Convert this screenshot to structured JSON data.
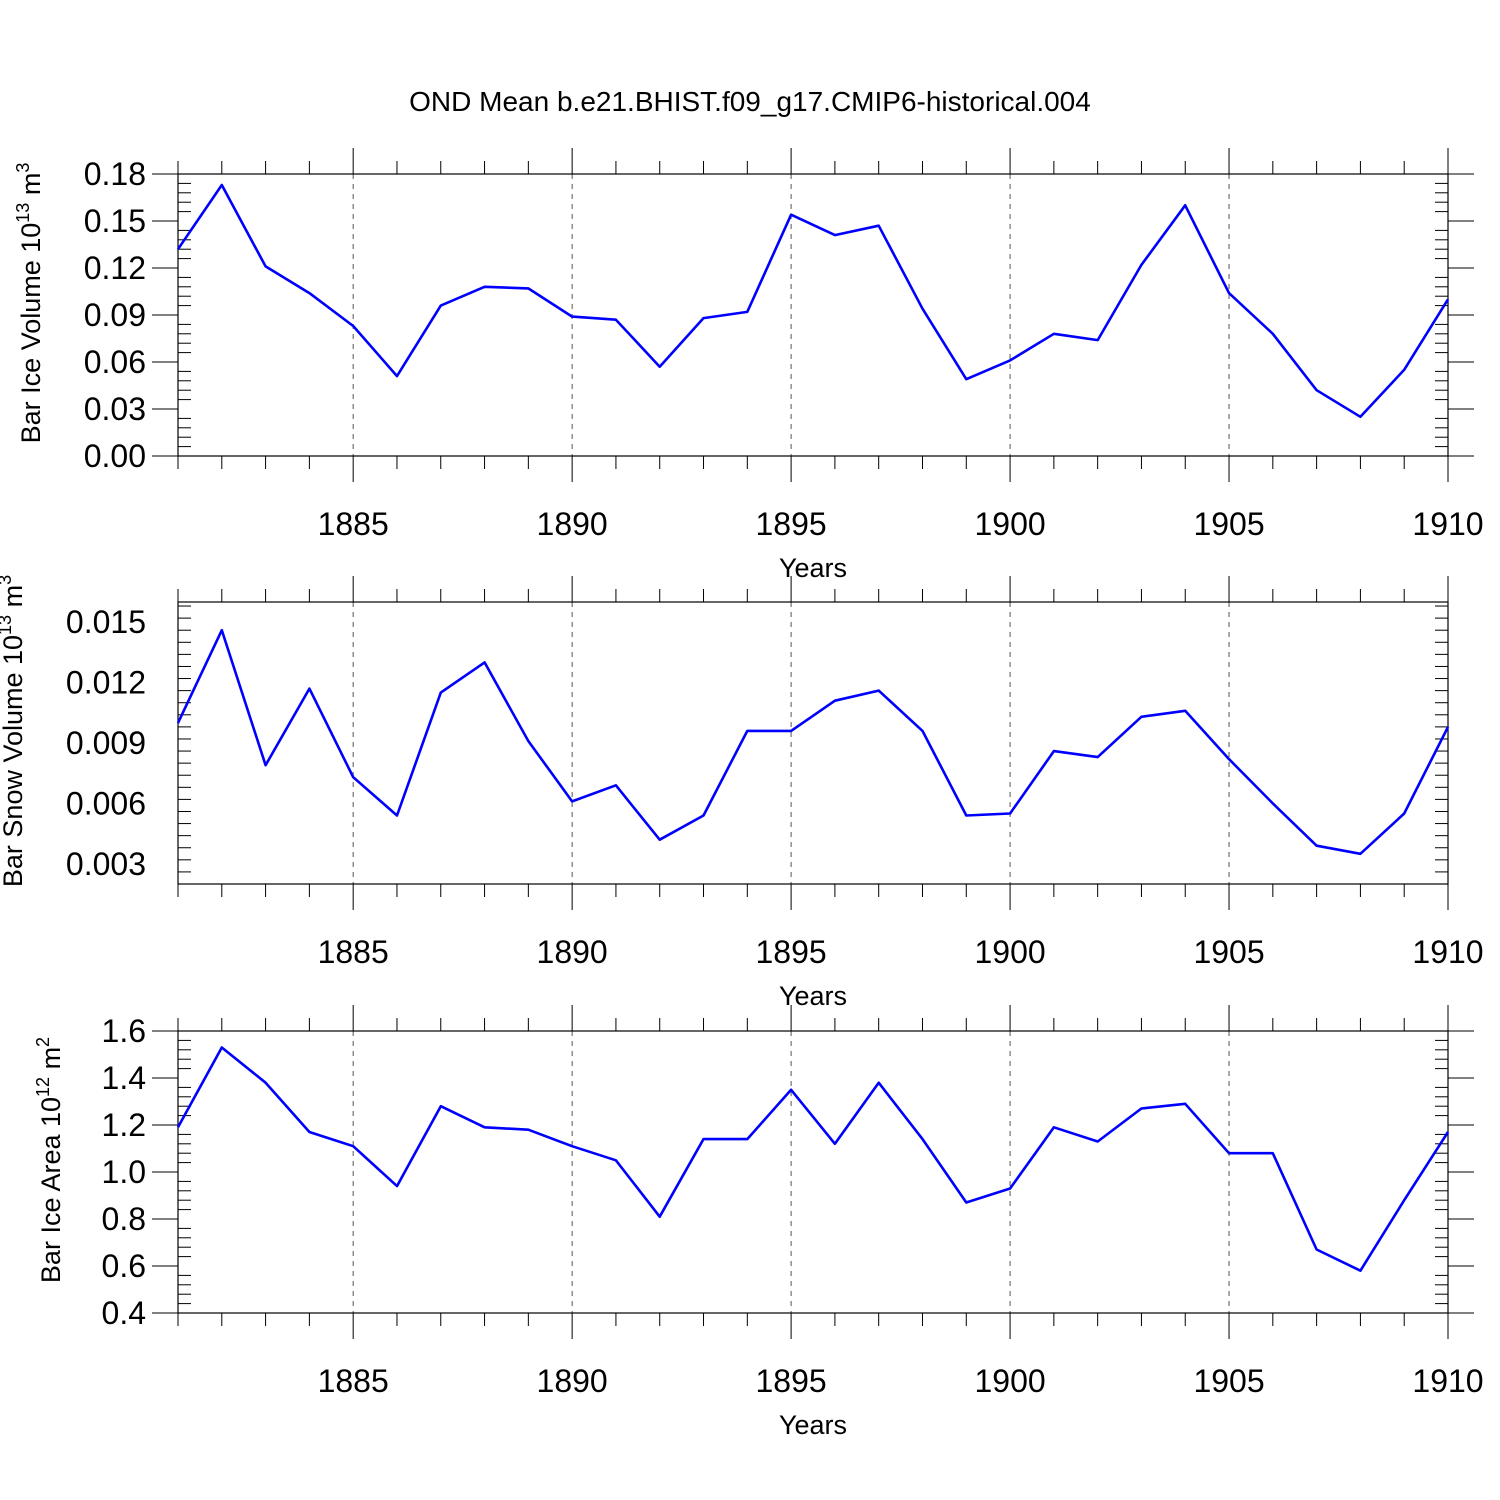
{
  "figure_title": "OND Mean b.e21.BHIST.f09_g17.CMIP6-historical.004",
  "colors": {
    "line": "#0000ff",
    "axes": "#000000",
    "grid": "#555555"
  },
  "chart_data": [
    {
      "type": "line",
      "title": "OND Mean b.e21.BHIST.f09_g17.CMIP6-historical.004",
      "xlabel": "Years",
      "ylabel": {
        "text": "Bar Ice Volume 10",
        "sup": "13",
        "unit": " m",
        "unit_sup": "3"
      },
      "xlim": [
        1881,
        1910
      ],
      "ylim": [
        0.0,
        0.18
      ],
      "xticks": [
        1885,
        1890,
        1895,
        1900,
        1905,
        1910
      ],
      "xtick_labels": [
        "1885",
        "1890",
        "1895",
        "1900",
        "1905",
        "1910"
      ],
      "yticks": [
        0.0,
        0.03,
        0.06,
        0.09,
        0.12,
        0.15,
        0.18
      ],
      "ytick_labels": [
        "0.00",
        "0.03",
        "0.06",
        "0.09",
        "0.12",
        "0.15",
        "0.18"
      ],
      "grid": "vertical dashed at major x ticks",
      "x": [
        1881,
        1882,
        1883,
        1884,
        1885,
        1886,
        1887,
        1888,
        1889,
        1890,
        1891,
        1892,
        1893,
        1894,
        1895,
        1896,
        1897,
        1898,
        1899,
        1900,
        1901,
        1902,
        1903,
        1904,
        1905,
        1906,
        1907,
        1908,
        1909,
        1910
      ],
      "series": [
        {
          "values": [
            0.132,
            0.173,
            0.121,
            0.104,
            0.083,
            0.051,
            0.096,
            0.108,
            0.107,
            0.089,
            0.087,
            0.057,
            0.088,
            0.092,
            0.154,
            0.141,
            0.147,
            0.094,
            0.049,
            0.061,
            0.078,
            0.074,
            0.122,
            0.16,
            0.104,
            0.078,
            0.042,
            0.025,
            0.055,
            0.1
          ]
        }
      ]
    },
    {
      "type": "line",
      "xlabel": "Years",
      "ylabel": {
        "text": "Bar Snow Volume 10",
        "sup": "13",
        "unit": " m",
        "unit_sup": "3"
      },
      "xlim": [
        1881,
        1910
      ],
      "ylim": [
        0.002,
        0.016
      ],
      "xticks": [
        1885,
        1890,
        1895,
        1900,
        1905,
        1910
      ],
      "xtick_labels": [
        "1885",
        "1890",
        "1895",
        "1900",
        "1905",
        "1910"
      ],
      "yticks": [
        0.003,
        0.006,
        0.009,
        0.012,
        0.015
      ],
      "ytick_labels": [
        "0.003",
        "0.006",
        "0.009",
        "0.012",
        "0.015"
      ],
      "grid": "vertical dashed at major x ticks",
      "x": [
        1881,
        1882,
        1883,
        1884,
        1885,
        1886,
        1887,
        1888,
        1889,
        1890,
        1891,
        1892,
        1893,
        1894,
        1895,
        1896,
        1897,
        1898,
        1899,
        1900,
        1901,
        1902,
        1903,
        1904,
        1905,
        1906,
        1907,
        1908,
        1909,
        1910
      ],
      "series": [
        {
          "values": [
            0.01,
            0.0146,
            0.0079,
            0.0117,
            0.0073,
            0.0054,
            0.0115,
            0.013,
            0.0091,
            0.0061,
            0.0069,
            0.0042,
            0.0054,
            0.0096,
            0.0096,
            0.0111,
            0.0116,
            0.0096,
            0.0054,
            0.0055,
            0.0086,
            0.0083,
            0.0103,
            0.0106,
            0.0082,
            0.006,
            0.0039,
            0.0035,
            0.0055,
            0.0098
          ]
        }
      ]
    },
    {
      "type": "line",
      "xlabel": "Years",
      "ylabel": {
        "text": "Bar Ice Area 10",
        "sup": "12",
        "unit": " m",
        "unit_sup": "2"
      },
      "xlim": [
        1881,
        1910
      ],
      "ylim": [
        0.4,
        1.6
      ],
      "xticks": [
        1885,
        1890,
        1895,
        1900,
        1905,
        1910
      ],
      "xtick_labels": [
        "1885",
        "1890",
        "1895",
        "1900",
        "1905",
        "1910"
      ],
      "yticks": [
        0.4,
        0.6,
        0.8,
        1.0,
        1.2,
        1.4,
        1.6
      ],
      "ytick_labels": [
        "0.4",
        "0.6",
        "0.8",
        "1.0",
        "1.2",
        "1.4",
        "1.6"
      ],
      "grid": "vertical dashed at major x ticks",
      "x": [
        1881,
        1882,
        1883,
        1884,
        1885,
        1886,
        1887,
        1888,
        1889,
        1890,
        1891,
        1892,
        1893,
        1894,
        1895,
        1896,
        1897,
        1898,
        1899,
        1900,
        1901,
        1902,
        1903,
        1904,
        1905,
        1906,
        1907,
        1908,
        1909,
        1910
      ],
      "series": [
        {
          "values": [
            1.19,
            1.53,
            1.38,
            1.17,
            1.11,
            0.94,
            1.28,
            1.19,
            1.18,
            1.11,
            1.05,
            0.81,
            1.14,
            1.14,
            1.35,
            1.12,
            1.38,
            1.14,
            0.87,
            0.93,
            1.19,
            1.13,
            1.27,
            1.29,
            1.08,
            1.08,
            0.67,
            0.58,
            0.88,
            1.17
          ]
        }
      ]
    }
  ]
}
